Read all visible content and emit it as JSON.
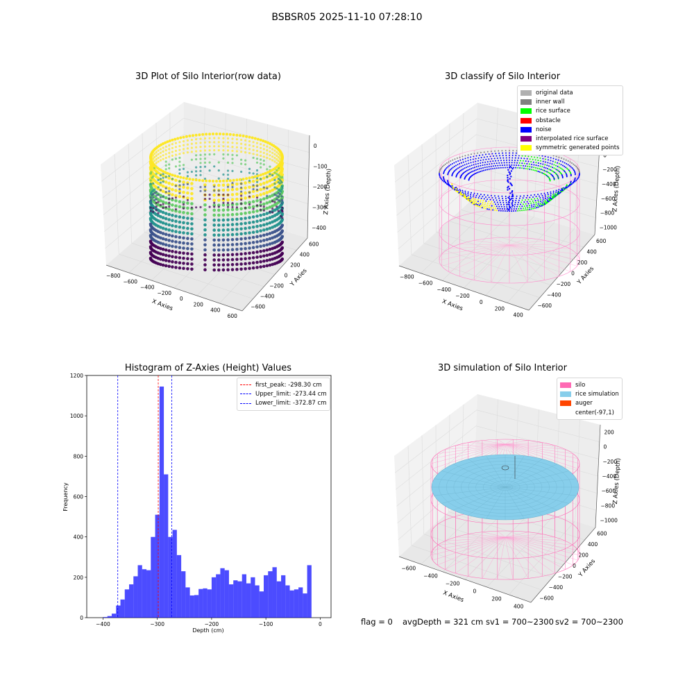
{
  "figure": {
    "suptitle": "BSBSR05 2025-11-10 07:28:10"
  },
  "panels": {
    "raw": {
      "title": "3D Plot of Silo Interior(row data)",
      "x_axis_label": "X Axies",
      "y_axis_label": "Y Axies",
      "z_axis_label": "Z Axies (Depth)",
      "x_ticks": [
        "−800",
        "−600",
        "−400",
        "−200",
        "0",
        "200",
        "400",
        "600"
      ],
      "y_ticks": [
        "−600",
        "−400",
        "−200",
        "0",
        "200",
        "400",
        "600"
      ],
      "z_ticks": [
        "−400",
        "−300",
        "−200",
        "−100",
        "0"
      ]
    },
    "classify": {
      "title": "3D classify of Silo Interior",
      "x_axis_label": "X Axies",
      "y_axis_label": "Y Axies",
      "z_axis_label": "Z Axies (Depth)",
      "x_ticks": [
        "−800",
        "−600",
        "−400",
        "−200",
        "0",
        "200",
        "400"
      ],
      "y_ticks": [
        "−600",
        "−400",
        "−200",
        "0",
        "200",
        "400",
        "600"
      ],
      "z_ticks": [
        "−1000",
        "−800",
        "−600",
        "−400",
        "−200",
        "0",
        "200"
      ],
      "legend": [
        {
          "label": "original data",
          "color": "#b0b0b0"
        },
        {
          "label": "inner wall",
          "color": "#808080"
        },
        {
          "label": "rice surface",
          "color": "#00ff00"
        },
        {
          "label": "obstacle",
          "color": "#ff0000"
        },
        {
          "label": "noise",
          "color": "#0000ff"
        },
        {
          "label": "interpolated rice surface",
          "color": "#800080"
        },
        {
          "label": "symmetric generated points",
          "color": "#ffff00"
        }
      ]
    },
    "simulation": {
      "title": "3D simulation of Silo Interior",
      "x_axis_label": "X Axies",
      "y_axis_label": "Y Axies",
      "z_axis_label": "Z Axies (Depth)",
      "x_ticks": [
        "−600",
        "−400",
        "−200",
        "0",
        "200",
        "400"
      ],
      "y_ticks": [
        "−600",
        "−400",
        "−200",
        "0",
        "200",
        "400",
        "600"
      ],
      "z_ticks": [
        "−1000",
        "−800",
        "−600",
        "−400",
        "−200",
        "0",
        "200"
      ],
      "legend": [
        {
          "label": "silo",
          "color": "#ff69b4"
        },
        {
          "label": "rice simulation",
          "color": "#87ceeb"
        },
        {
          "label": "auger",
          "color": "#ff4500"
        },
        {
          "label": "center(-97,1)",
          "color": "#ffffff"
        }
      ],
      "footer": {
        "flag": "flag = 0",
        "avg_depth": "avgDepth = 321 cm",
        "sv1": "sv1 = 700~2300",
        "sv2": "sv2 = 700~2300"
      }
    }
  },
  "chart_data": {
    "type": "bar",
    "title": "Histogram of Z-Axies (Height) Values",
    "xlabel": "Depth (cm)",
    "ylabel": "Frequency",
    "xlim": [
      -430,
      20
    ],
    "ylim": [
      0,
      1200
    ],
    "x_ticks": [
      -400,
      -300,
      -200,
      -100,
      0
    ],
    "x_tick_labels": [
      "−400",
      "−300",
      "−200",
      "−100",
      "0"
    ],
    "y_ticks": [
      0,
      200,
      400,
      600,
      800,
      1000,
      1200
    ],
    "bin_width": 8,
    "bin_start": -400,
    "values": [
      3,
      8,
      20,
      60,
      90,
      140,
      165,
      205,
      260,
      240,
      235,
      400,
      510,
      1145,
      710,
      400,
      435,
      310,
      230,
      150,
      110,
      112,
      142,
      145,
      140,
      200,
      215,
      245,
      235,
      165,
      185,
      180,
      215,
      170,
      200,
      160,
      130,
      210,
      230,
      250,
      180,
      210,
      160,
      135,
      140,
      150,
      120,
      260
    ],
    "series_color": "#0000ff",
    "vlines": [
      {
        "label": "first_peak: -298.30 cm",
        "x": -298.3,
        "color": "#ff0000"
      },
      {
        "label": "Upper_limit: -273.44 cm",
        "x": -273.44,
        "color": "#0000ff"
      },
      {
        "label": "Lower_limit: -372.87 cm",
        "x": -372.87,
        "color": "#0000ff"
      }
    ],
    "legend_position": "top-right"
  }
}
